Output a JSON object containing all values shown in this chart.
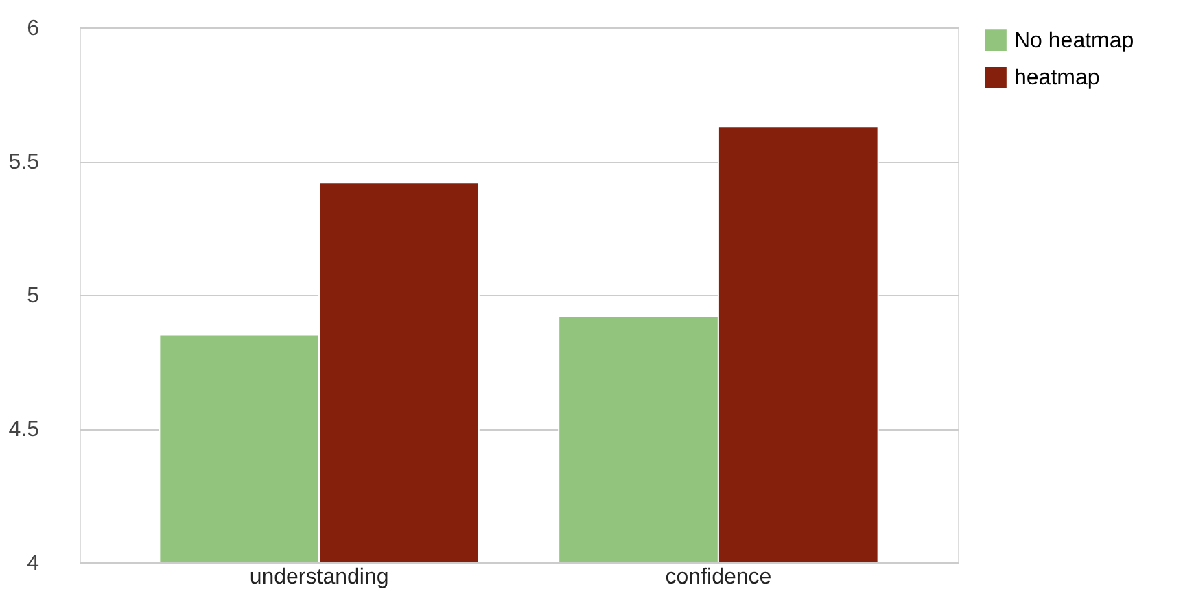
{
  "chart_data": {
    "type": "bar",
    "categories": [
      "understanding",
      "confidence"
    ],
    "series": [
      {
        "name": "No heatmap",
        "color": "#93c47d",
        "values": [
          4.85,
          4.92
        ]
      },
      {
        "name": "heatmap",
        "color": "#85200c",
        "values": [
          5.42,
          5.63
        ]
      }
    ],
    "ylim": [
      4,
      6
    ],
    "yticks": [
      4,
      4.5,
      5,
      5.5,
      6
    ],
    "grid": "y",
    "legend": "top right"
  }
}
